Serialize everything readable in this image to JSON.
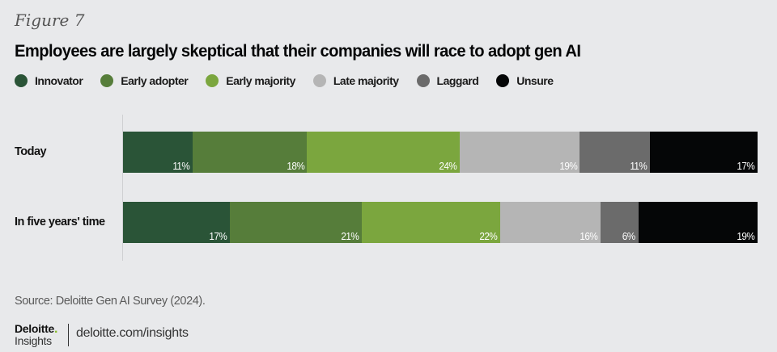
{
  "figure_label": "Figure 7",
  "title": "Employees are largely skeptical that their companies will race to adopt gen AI",
  "legend": [
    {
      "label": "Innovator",
      "color": "#2a5437"
    },
    {
      "label": "Early adopter",
      "color": "#567d3a"
    },
    {
      "label": "Early majority",
      "color": "#7ba63e"
    },
    {
      "label": "Late majority",
      "color": "#b5b5b5"
    },
    {
      "label": "Laggard",
      "color": "#6b6b6b"
    },
    {
      "label": "Unsure",
      "color": "#050607"
    }
  ],
  "chart_data": {
    "type": "bar",
    "orientation": "horizontal",
    "stacked": true,
    "title": "Employees are largely skeptical that their companies will race to adopt gen AI",
    "categories": [
      "Today",
      "In five years' time"
    ],
    "series": [
      {
        "name": "Innovator",
        "color": "#2a5437",
        "values": [
          11,
          17
        ]
      },
      {
        "name": "Early adopter",
        "color": "#567d3a",
        "values": [
          18,
          21
        ]
      },
      {
        "name": "Early majority",
        "color": "#7ba63e",
        "values": [
          24,
          22
        ]
      },
      {
        "name": "Late majority",
        "color": "#b5b5b5",
        "values": [
          19,
          16
        ]
      },
      {
        "name": "Laggard",
        "color": "#6b6b6b",
        "values": [
          11,
          6
        ]
      },
      {
        "name": "Unsure",
        "color": "#050607",
        "values": [
          17,
          19
        ]
      }
    ],
    "value_suffix": "%",
    "xlabel": "",
    "ylabel": "",
    "legend_position": "top-left",
    "grid": false
  },
  "source": "Source: Deloitte Gen AI Survey (2024).",
  "brand": {
    "name": "Deloitte",
    "dot": ".",
    "sub": "Insights",
    "url": "deloitte.com/insights"
  }
}
